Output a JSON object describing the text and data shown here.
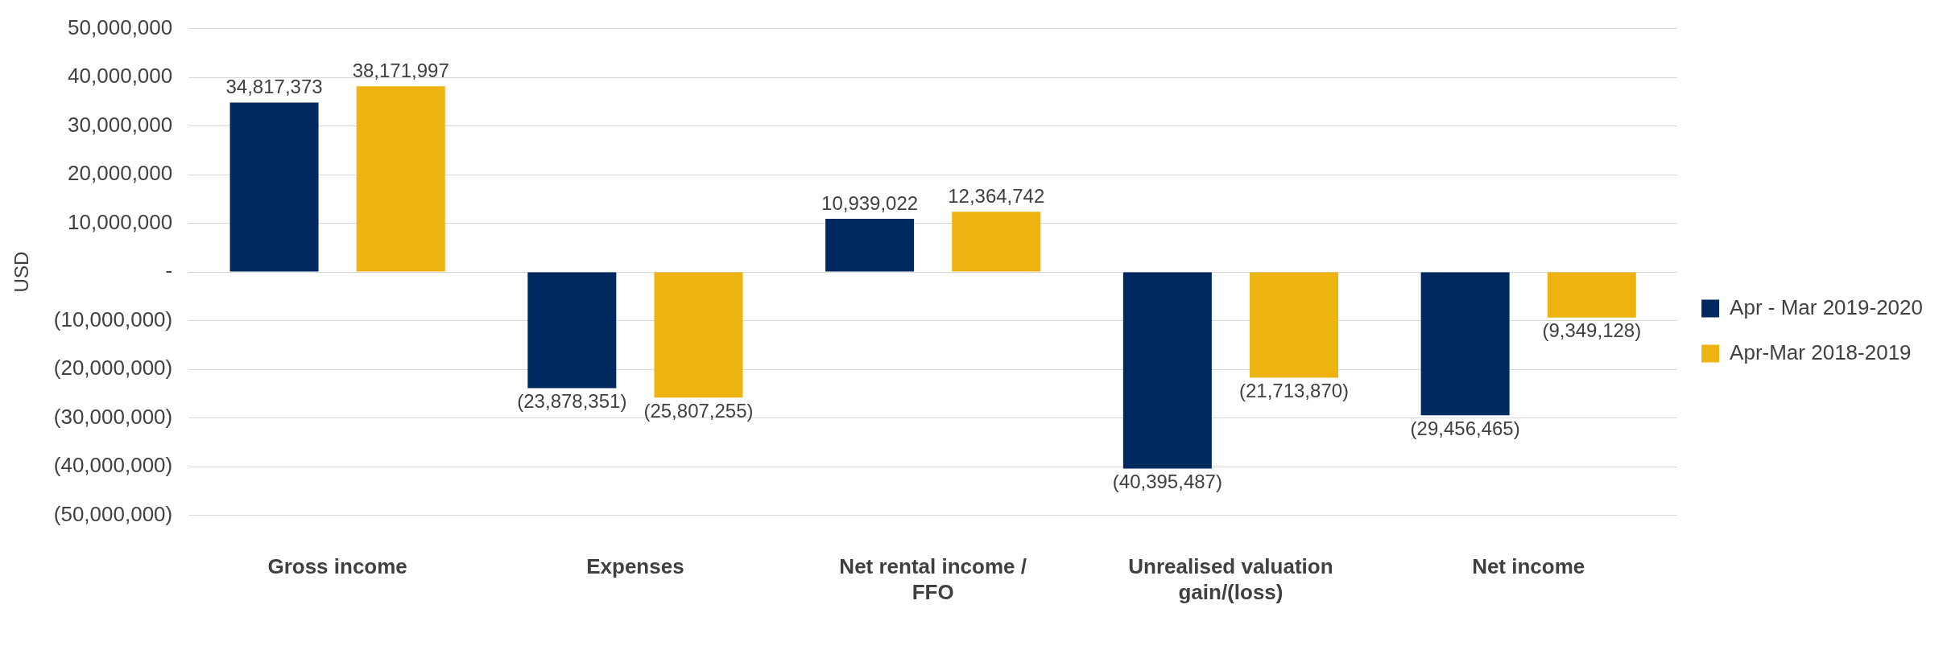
{
  "chart_data": {
    "type": "bar",
    "ylabel": "USD",
    "categories": [
      "Gross income",
      "Expenses",
      "Net rental income / FFO",
      "Unrealised valuation gain/(loss)",
      "Net income"
    ],
    "series": [
      {
        "name": "Apr - Mar 2019-2020",
        "color": "#002960",
        "values": [
          34817373,
          -23878351,
          10939022,
          -40395487,
          -29456465
        ],
        "value_labels": [
          "34,817,373",
          "(23,878,351)",
          "10,939,022",
          "(40,395,487)",
          "(29,456,465)"
        ]
      },
      {
        "name": "Apr-Mar 2018-2019",
        "color": "#edb411",
        "values": [
          38171997,
          -25807255,
          12364742,
          -21713870,
          -9349128
        ],
        "value_labels": [
          "38,171,997",
          "(25,807,255)",
          "12,364,742",
          "(21,713,870)",
          "(9,349,128)"
        ]
      }
    ],
    "ylim": [
      -50000000,
      50000000
    ],
    "yticks": [
      {
        "value": 50000000,
        "label": "50,000,000"
      },
      {
        "value": 40000000,
        "label": "40,000,000"
      },
      {
        "value": 30000000,
        "label": "30,000,000"
      },
      {
        "value": 20000000,
        "label": "20,000,000"
      },
      {
        "value": 10000000,
        "label": "10,000,000"
      },
      {
        "value": 0,
        "label": "-"
      },
      {
        "value": -10000000,
        "label": "(10,000,000)"
      },
      {
        "value": -20000000,
        "label": "(20,000,000)"
      },
      {
        "value": -30000000,
        "label": "(30,000,000)"
      },
      {
        "value": -40000000,
        "label": "(40,000,000)"
      },
      {
        "value": -50000000,
        "label": "(50,000,000)"
      }
    ],
    "grid": "y",
    "legend": "right"
  }
}
